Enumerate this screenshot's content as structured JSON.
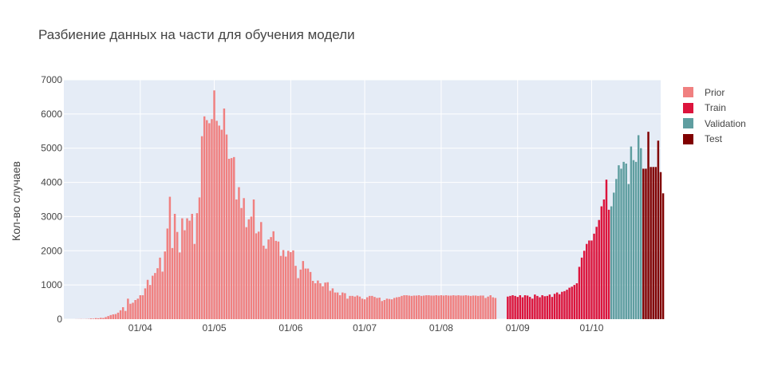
{
  "chart_data": {
    "type": "bar",
    "title": "Разбиение данных на части для обучения модели",
    "xlabel": "",
    "ylabel": "Кол-во случаев",
    "ylim": [
      0,
      7000
    ],
    "xlim": [
      "2020-03-01",
      "2020-10-29"
    ],
    "yticks": [
      0,
      1000,
      2000,
      3000,
      4000,
      5000,
      6000,
      7000
    ],
    "xticks": [
      {
        "date": "2020-04-01",
        "label": "01/04"
      },
      {
        "date": "2020-05-01",
        "label": "01/05"
      },
      {
        "date": "2020-06-01",
        "label": "01/06"
      },
      {
        "date": "2020-07-01",
        "label": "01/07"
      },
      {
        "date": "2020-08-01",
        "label": "01/08"
      },
      {
        "date": "2020-09-01",
        "label": "01/09"
      },
      {
        "date": "2020-10-01",
        "label": "01/10"
      }
    ],
    "grid": true,
    "legend_position": "top-right",
    "series": [
      {
        "name": "Prior",
        "color": "#f08080",
        "start": "2020-03-06",
        "values": [
          2,
          3,
          5,
          3,
          5,
          8,
          20,
          15,
          30,
          25,
          40,
          35,
          60,
          90,
          120,
          140,
          150,
          190,
          260,
          350,
          240,
          600,
          450,
          480,
          560,
          600,
          700,
          700,
          900,
          1150,
          1000,
          1270,
          1350,
          1490,
          1800,
          1390,
          1980,
          2650,
          3580,
          2080,
          3080,
          2550,
          1950,
          2950,
          2600,
          2950,
          2880,
          3080,
          2200,
          3100,
          3560,
          5350,
          5930,
          5820,
          5730,
          5850,
          6690,
          5800,
          5660,
          5540,
          6160,
          5400,
          4690,
          4710,
          4740,
          3500,
          3860,
          3250,
          3540,
          2690,
          2920,
          3000,
          3500,
          2510,
          2560,
          2840,
          2150,
          2060,
          2330,
          2400,
          2570,
          2290,
          2270,
          1850,
          2020,
          1830,
          2000,
          1960,
          2010,
          1560,
          1200,
          1450,
          1700,
          1480,
          1480,
          1380,
          1120,
          1050,
          1130,
          1050,
          960,
          1070,
          1080,
          830,
          900,
          780,
          780,
          700,
          780,
          760,
          600,
          680,
          680,
          660,
          690,
          660,
          600,
          580,
          640,
          680,
          680,
          650,
          620,
          630,
          530,
          560,
          600,
          590,
          580,
          620,
          640,
          650,
          680,
          700,
          700,
          690,
          680,
          690,
          690,
          700,
          680,
          690,
          700,
          700,
          690,
          690,
          700,
          690,
          700,
          690,
          700,
          690,
          690,
          700,
          690,
          700,
          690,
          690,
          700,
          690,
          680,
          690,
          690,
          680,
          690,
          690,
          620,
          660,
          700,
          640,
          620
        ]
      },
      {
        "name": "Train",
        "color": "#dc143c",
        "start": "2020-08-28",
        "values": [
          660,
          680,
          700,
          680,
          650,
          700,
          640,
          700,
          690,
          650,
          600,
          720,
          680,
          640,
          700,
          670,
          680,
          720,
          650,
          740,
          780,
          730,
          800,
          820,
          860,
          920,
          950,
          1000,
          1050,
          1530,
          1800,
          2000,
          2200,
          2300,
          2300,
          2500,
          2700,
          2900,
          3300,
          3500,
          4080,
          3200
        ]
      },
      {
        "name": "Validation",
        "color": "#5f9ea0",
        "start": "2020-10-09",
        "values": [
          3300,
          3700,
          4100,
          4500,
          4400,
          4600,
          4550,
          3950,
          5050,
          4650,
          4600,
          5380,
          5000
        ]
      },
      {
        "name": "Test",
        "color": "#800000",
        "start": "2020-10-22",
        "values": [
          4400,
          4400,
          5480,
          4450,
          4450,
          4450,
          5220,
          4300,
          3680
        ]
      }
    ]
  }
}
